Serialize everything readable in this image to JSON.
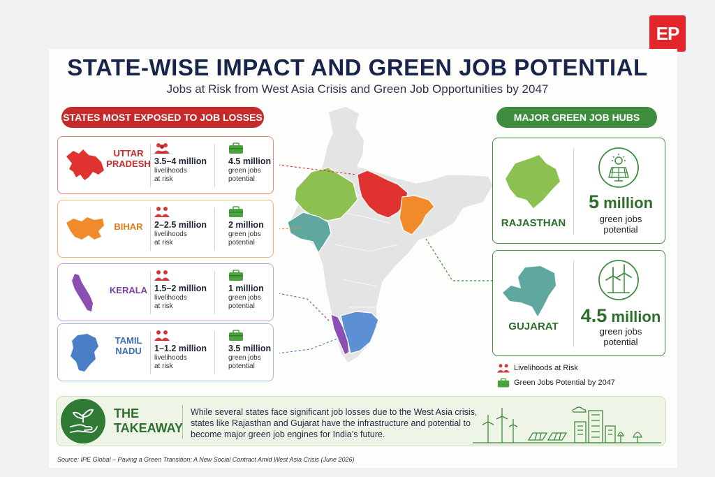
{
  "logo": {
    "text": "EP"
  },
  "header": {
    "title": "STATE-WISE IMPACT AND GREEN JOB POTENTIAL",
    "subtitle": "Jobs at Risk from West Asia Crisis and Green Job Opportunities by 2047"
  },
  "left_section": {
    "heading": "STATES MOST EXPOSED TO JOB LOSSES"
  },
  "right_section": {
    "heading": "MAJOR GREEN JOB HUBS"
  },
  "states": [
    {
      "name_line1": "UTTAR",
      "name_line2": "PRADESH",
      "color": "#e0322f",
      "border": "#e8857f",
      "risk_value": "3.5–4 million",
      "risk_label1": "livelihoods",
      "risk_label2": "at risk",
      "green_value": "4.5 million",
      "green_label1": "green jobs",
      "green_label2": "potential"
    },
    {
      "name_line1": "BIHAR",
      "name_line2": "",
      "color": "#f08a2a",
      "border": "#f2b27a",
      "risk_value": "2–2.5 million",
      "risk_label1": "livelihoods",
      "risk_label2": "at risk",
      "green_value": "2 million",
      "green_label1": "green jobs",
      "green_label2": "potential"
    },
    {
      "name_line1": "KERALA",
      "name_line2": "",
      "color": "#8a4fb0",
      "border": "#c3a3d8",
      "risk_value": "1.5–2 million",
      "risk_label1": "livelihoods",
      "risk_label2": "at risk",
      "green_value": "1 million",
      "green_label1": "green jobs",
      "green_label2": "potential"
    },
    {
      "name_line1": "TAMIL",
      "name_line2": "NADU",
      "color": "#4a7fc8",
      "border": "#9fbde3",
      "risk_value": "1–1.2 million",
      "risk_label1": "livelihoods",
      "risk_label2": "at risk",
      "green_value": "3.5 million",
      "green_label1": "green jobs",
      "green_label2": "potential"
    }
  ],
  "hubs": [
    {
      "name": "RAJASTHAN",
      "value_num": "5",
      "value_unit": "million",
      "label1": "green jobs",
      "label2": "potential",
      "icon": "solar-panel-icon",
      "color": "#8cc152"
    },
    {
      "name": "GUJARAT",
      "value_num": "4.5",
      "value_unit": "million",
      "label1": "green jobs",
      "label2": "potential",
      "icon": "wind-turbine-icon",
      "color": "#5fa8a0"
    }
  ],
  "legend": {
    "risk": "Livelihoods at Risk",
    "green": "Green Jobs Potential by 2047"
  },
  "takeaway": {
    "title_line1": "THE",
    "title_line2": "TAKEAWAY",
    "text": "While several states face significant job losses due to the West Asia crisis, states like Rajasthan and Gujarat have the infrastructure and potential to become major green job engines for India’s future."
  },
  "source": "Source: IPE Global – Paving a Green Transition: A New Social Contract Amid West Asia Crisis (June 2026)",
  "colors": {
    "accent_red": "#c42a2a",
    "accent_green": "#3e8c3e",
    "navy": "#17254a"
  }
}
